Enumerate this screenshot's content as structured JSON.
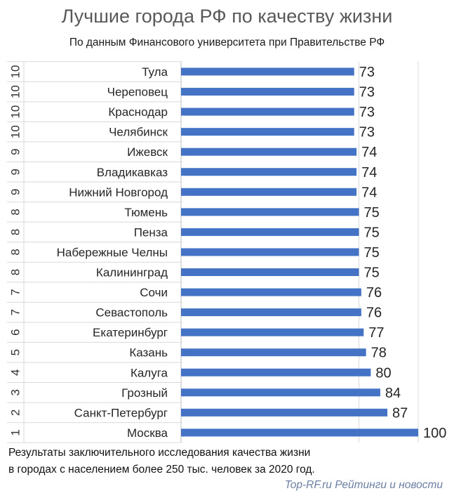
{
  "chart_data": {
    "type": "bar",
    "orientation": "horizontal",
    "title": "Лучшие города РФ по качеству жизни",
    "subtitle": "По данным Финансового университета при Правительстве РФ",
    "categories": [
      "Тула",
      "Череповец",
      "Краснодар",
      "Челябинск",
      "Ижевск",
      "Владикавказ",
      "Нижний Новгород",
      "Тюмень",
      "Пенза",
      "Набережные Челны",
      "Калининград",
      "Сочи",
      "Севастополь",
      "Екатеринбург",
      "Казань",
      "Калуга",
      "Грозный",
      "Санкт-Петербург",
      "Москва"
    ],
    "ranks": [
      "10",
      "10",
      "10",
      "10",
      "9",
      "9",
      "9",
      "8",
      "8",
      "8",
      "8",
      "7",
      "7",
      "6",
      "5",
      "4",
      "3",
      "2",
      "1"
    ],
    "values": [
      73,
      73,
      73,
      73,
      74,
      74,
      74,
      75,
      75,
      75,
      75,
      76,
      76,
      77,
      78,
      80,
      84,
      87,
      100
    ],
    "xlim": [
      0,
      100
    ],
    "bar_color": "#4472c4",
    "grid": true
  },
  "footer": {
    "line1": "Результаты заключительного исследования качества жизни",
    "line2": "в городах с населением более 250 тыс. человек за 2020 год."
  },
  "source": "Top-RF.ru Рейтинги и новости"
}
